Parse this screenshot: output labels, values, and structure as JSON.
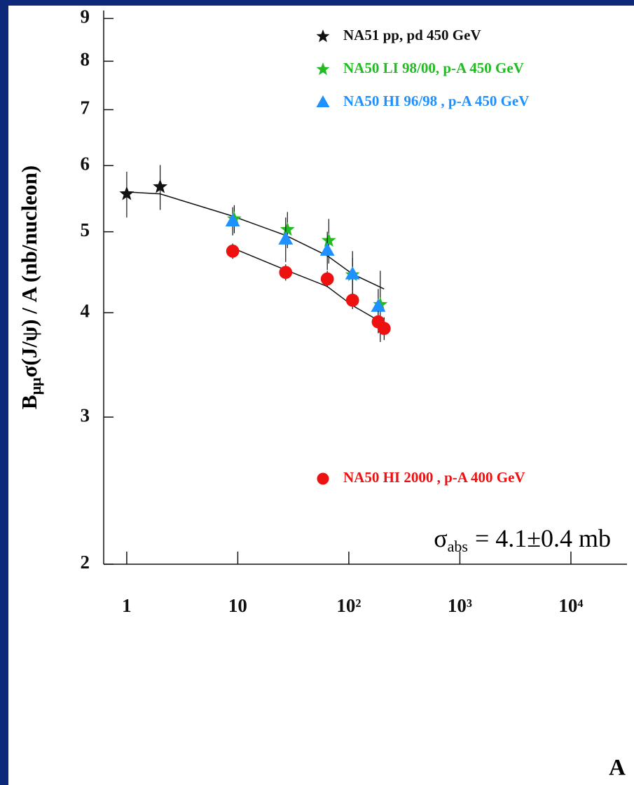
{
  "chart_data": {
    "type": "scatter",
    "x_label": "A",
    "y_label": {
      "base": "B",
      "subscript": "μμ",
      "rest": "σ(J/ψ) / A (nb/nucleon)"
    },
    "annotation": {
      "symbol": "σ",
      "subscript": "abs",
      "text": "= 4.1±0.4 mb"
    },
    "xscale": "log",
    "yscale": "log",
    "xlim": [
      0.62,
      32000
    ],
    "ylim": [
      2,
      9.2
    ],
    "xticks": [
      1,
      10,
      {
        "value": 100,
        "label": "10²"
      },
      {
        "value": 1000,
        "label": "10³"
      },
      {
        "value": 10000,
        "label": "10⁴"
      }
    ],
    "yticks": [
      2,
      3,
      4,
      5,
      6,
      7,
      8,
      9
    ],
    "series": [
      {
        "name": "NA51 pp, pd 450 GeV",
        "color": "#111111",
        "marker": "star",
        "x": [
          1,
          2
        ],
        "values": [
          5.55,
          5.66
        ],
        "errors": [
          0.35,
          0.35
        ]
      },
      {
        "name": "NA50 LI 98/00, p-A 450 GeV",
        "color": "#22bb22",
        "marker": "star",
        "x": [
          9.3,
          28,
          66,
          108,
          192
        ],
        "values": [
          5.18,
          5.03,
          4.88,
          4.44,
          4.09
        ],
        "errors": [
          0.2,
          0.25,
          0.3,
          0.3,
          0.4
        ]
      },
      {
        "name": "NA50 HI 96/98 , p-A 450 GeV",
        "color": "#1e90ff",
        "marker": "triangle",
        "x": [
          9,
          27,
          64,
          108,
          184
        ],
        "values": [
          5.15,
          4.9,
          4.75,
          4.45,
          4.07
        ],
        "errors": [
          0.2,
          0.3,
          0.25,
          0.2,
          0.2
        ]
      },
      {
        "name": "NA50 HI 2000 , p-A 400 GeV",
        "color": "#ee1111",
        "marker": "circle",
        "x": [
          9,
          27,
          64,
          108,
          184,
          208
        ],
        "values": [
          4.74,
          4.47,
          4.39,
          4.14,
          3.9,
          3.83
        ],
        "errors": [
          0.1,
          0.1,
          0.1,
          0.1,
          0.12,
          0.12
        ]
      }
    ],
    "fit_lines": [
      {
        "x": [
          1,
          2,
          9,
          27,
          64,
          108,
          208
        ],
        "values": [
          5.58,
          5.55,
          5.22,
          4.95,
          4.68,
          4.45,
          4.27
        ]
      },
      {
        "x": [
          9,
          27,
          64,
          108,
          208
        ],
        "values": [
          4.78,
          4.5,
          4.3,
          4.08,
          3.88
        ]
      }
    ]
  }
}
